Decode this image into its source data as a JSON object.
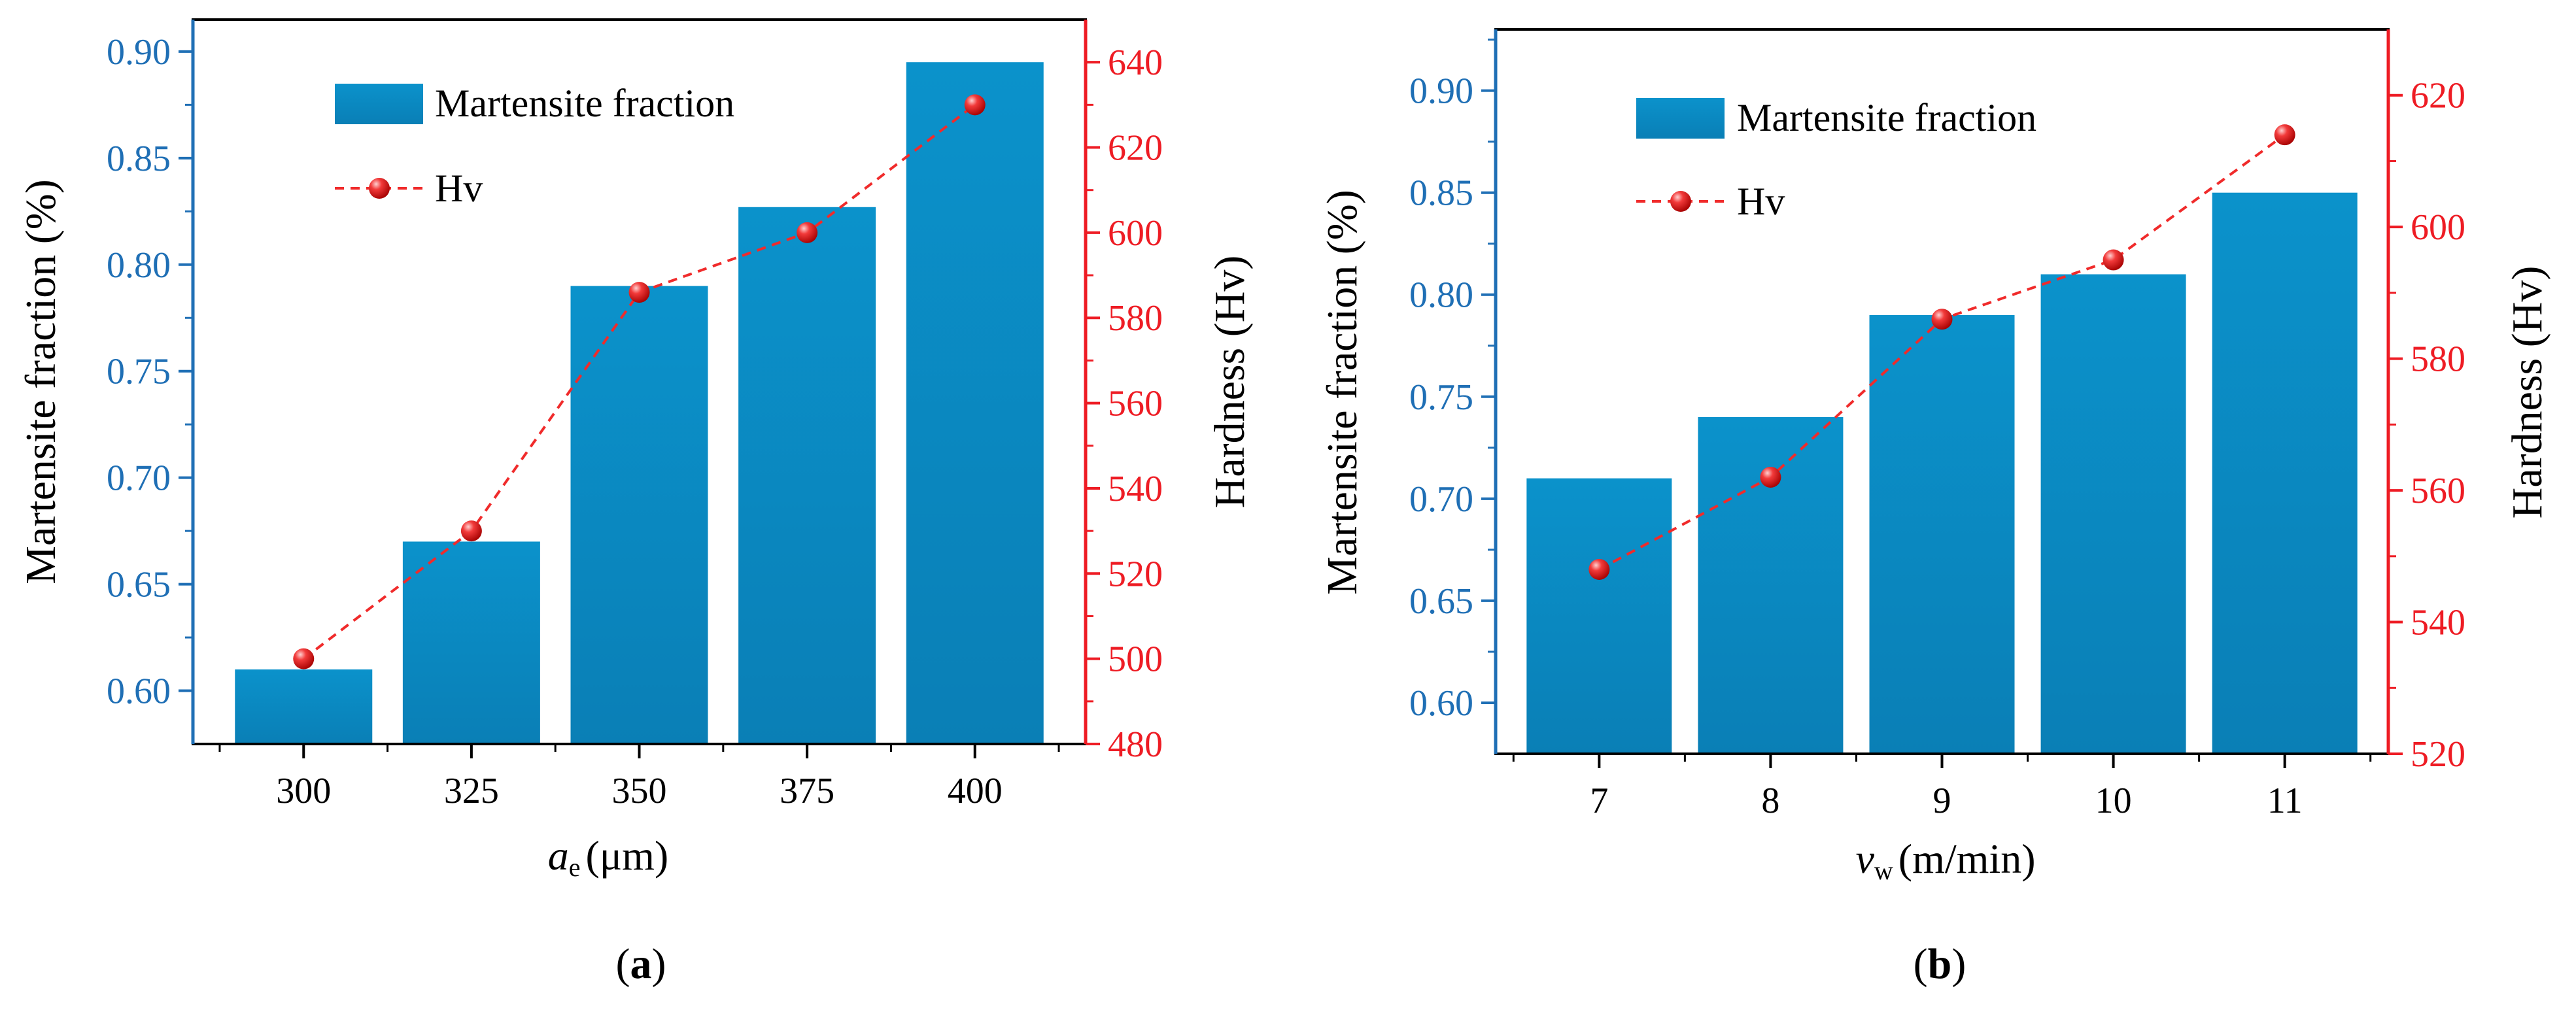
{
  "colors": {
    "bar": "#0a8fc6",
    "bar_dark": "#0578ab",
    "hv_line": "#f02b2b",
    "left_axis": "#1f6fb5",
    "right_axis": "#ee1c24",
    "frame": "#000000"
  },
  "chart_data": [
    {
      "type": "bar",
      "panel_label": "(a)",
      "panel_letter": "a",
      "categories": [
        "300",
        "325",
        "350",
        "375",
        "400"
      ],
      "series": [
        {
          "name": "Martensite fraction",
          "kind": "bar",
          "axis": "left",
          "values": [
            0.61,
            0.67,
            0.79,
            0.827,
            0.895
          ]
        },
        {
          "name": "Hv",
          "kind": "line",
          "axis": "right",
          "values": [
            500,
            530,
            586,
            600,
            630
          ]
        }
      ],
      "xlabel_symbol": "a",
      "xlabel_subscript": "e",
      "xlabel_unit": "(μm)",
      "ylabel": "Martensite fraction (%)",
      "ylabel_right": "Hardness (Hv)",
      "ylim": [
        0.575,
        0.915
      ],
      "yticks": [
        "0.60",
        "0.65",
        "0.70",
        "0.75",
        "0.80",
        "0.85",
        "0.90"
      ],
      "ylim_right": [
        480,
        650
      ],
      "yticks_right": [
        "480",
        "500",
        "520",
        "540",
        "560",
        "580",
        "600",
        "620",
        "640"
      ],
      "legend": {
        "bar_label": "Martensite fraction",
        "line_label": "Hv",
        "placement": "top-left"
      }
    },
    {
      "type": "bar",
      "panel_label": "(b)",
      "panel_letter": "b",
      "categories": [
        "7",
        "8",
        "9",
        "10",
        "11"
      ],
      "series": [
        {
          "name": "Martensite fraction",
          "kind": "bar",
          "axis": "left",
          "values": [
            0.71,
            0.74,
            0.79,
            0.81,
            0.85
          ]
        },
        {
          "name": "Hv",
          "kind": "line",
          "axis": "right",
          "values": [
            548,
            562,
            586,
            595,
            614
          ]
        }
      ],
      "xlabel_symbol": "v",
      "xlabel_subscript": "w",
      "xlabel_unit": "(m/min)",
      "ylabel": "Martensite fraction (%)",
      "ylabel_right": "Hardness (Hv)",
      "ylim": [
        0.575,
        0.93
      ],
      "yticks": [
        "0.60",
        "0.65",
        "0.70",
        "0.75",
        "0.80",
        "0.85",
        "0.90"
      ],
      "ylim_right": [
        520,
        630
      ],
      "yticks_right": [
        "520",
        "540",
        "560",
        "580",
        "600",
        "620"
      ],
      "legend": {
        "bar_label": "Martensite fraction",
        "line_label": "Hv",
        "placement": "top-left"
      }
    }
  ]
}
